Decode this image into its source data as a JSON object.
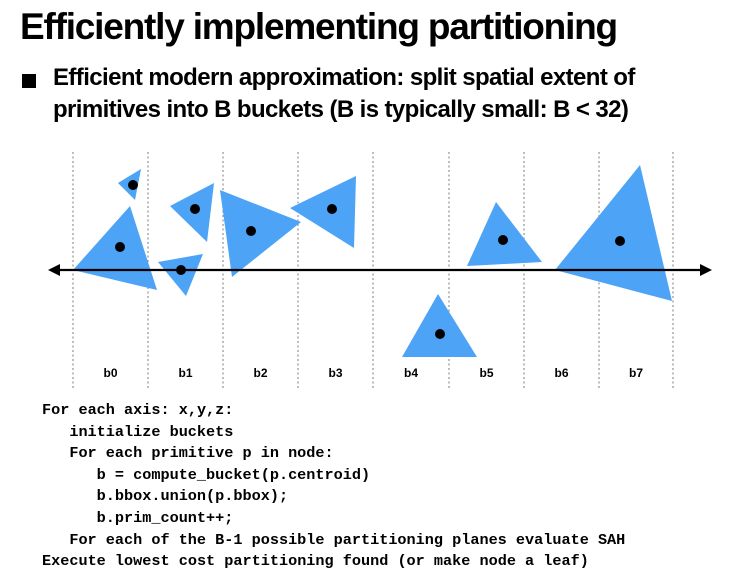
{
  "title": "Efficiently implementing partitioning",
  "bullet": "Efficient modern approximation: split spatial extent of primitives into B buckets (B is typically small: B < 32)",
  "colors": {
    "triangle": "#4da3f5",
    "dot": "#000000",
    "axis": "#000000",
    "divider": "#9a9a9a"
  },
  "buckets": [
    "b0",
    "b1",
    "b2",
    "b3",
    "b4",
    "b5",
    "b6",
    "b7"
  ],
  "code_lines": [
    {
      "indent": 0,
      "text": "For each axis: x,y,z:"
    },
    {
      "indent": 1,
      "text": "initialize buckets"
    },
    {
      "indent": 1,
      "text": "For each primitive p in node:"
    },
    {
      "indent": 2,
      "text": "b = compute_bucket(p.centroid)"
    },
    {
      "indent": 2,
      "text": "b.bbox.union(p.bbox);"
    },
    {
      "indent": 2,
      "text": "b.prim_count++;"
    },
    {
      "indent": 1,
      "text": "For each of the B-1 possible partitioning planes evaluate SAH"
    },
    {
      "indent": 0,
      "text": "Execute lowest cost partitioning found (or make node a leaf)"
    }
  ]
}
